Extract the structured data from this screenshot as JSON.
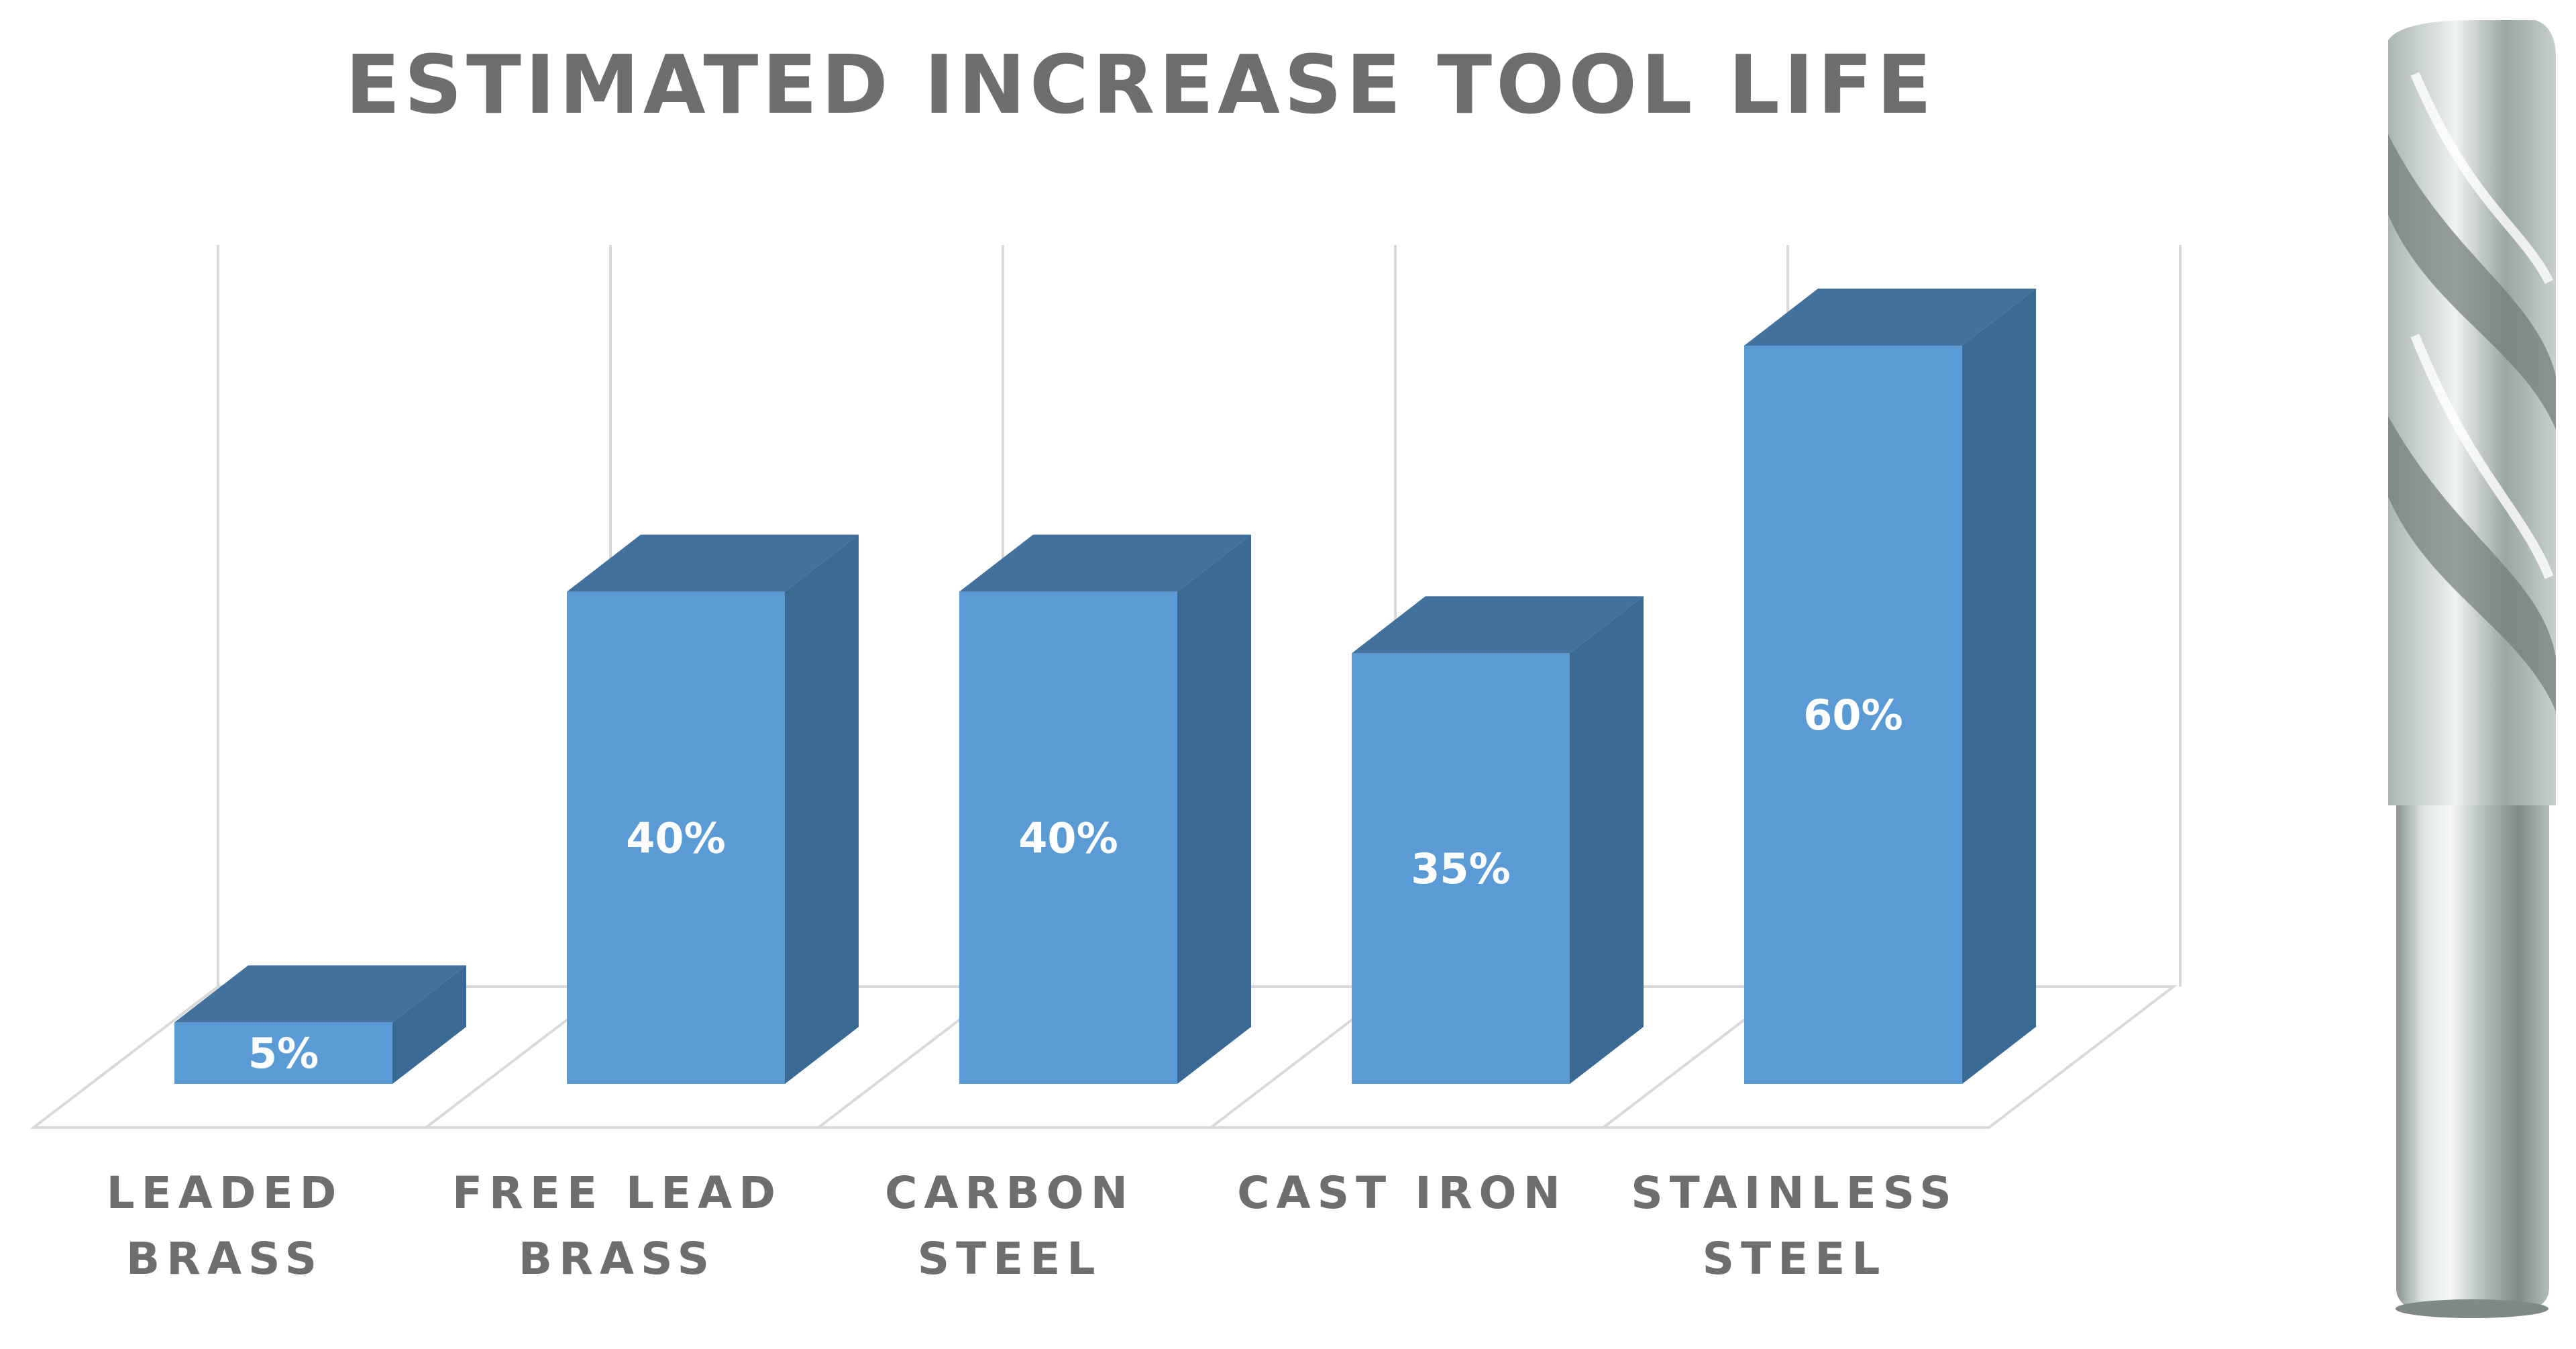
{
  "chart_data": {
    "type": "bar",
    "style": "3d-column",
    "title": "ESTIMATED INCREASE TOOL LIFE",
    "categories": [
      [
        "LEADED",
        "BRASS"
      ],
      [
        "FREE LEAD",
        "BRASS"
      ],
      [
        "CARBON",
        "STEEL"
      ],
      [
        "CAST IRON"
      ],
      [
        "STAINLESS",
        "STEEL"
      ]
    ],
    "values": [
      5,
      40,
      40,
      35,
      60
    ],
    "data_labels": [
      "5%",
      "40%",
      "40%",
      "35%",
      "60%"
    ],
    "ylim": [
      0,
      60
    ],
    "grid": "vertical",
    "xlabel": "",
    "ylabel": ""
  },
  "colors": {
    "title": "#6e6e6e",
    "labels": "#6e6e6e",
    "bar_front": "#5b9bd5",
    "bar_top": "#41719c",
    "bar_side": "#3a6a94",
    "data_label": "#ffffff",
    "grid": "#d9d9d9"
  },
  "illustration": {
    "icon": "end-mill-icon"
  }
}
